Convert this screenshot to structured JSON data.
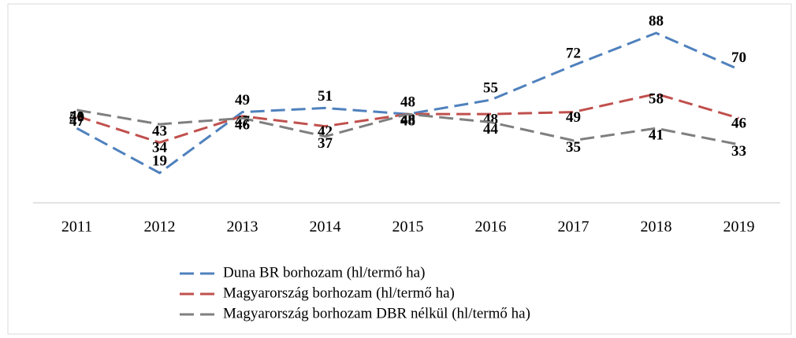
{
  "chart_data": {
    "type": "line",
    "categories": [
      "2011",
      "2012",
      "2013",
      "2014",
      "2015",
      "2016",
      "2017",
      "2018",
      "2019"
    ],
    "series": [
      {
        "name": "Duna BR borhozam (hl/termő ha)",
        "color": "#4f81bd",
        "values": [
          41,
          19,
          49,
          51,
          48,
          55,
          72,
          88,
          70
        ]
      },
      {
        "name": "Magyarország borhozam (hl/termő ha)",
        "color": "#c0504d",
        "values": [
          47,
          34,
          47,
          42,
          48,
          48,
          49,
          58,
          46
        ]
      },
      {
        "name": "Magyarország borhozam DBR nélkül (hl/termő ha)",
        "color": "#7f7f7f",
        "values": [
          50,
          43,
          46,
          37,
          48,
          44,
          35,
          41,
          33
        ]
      }
    ]
  }
}
